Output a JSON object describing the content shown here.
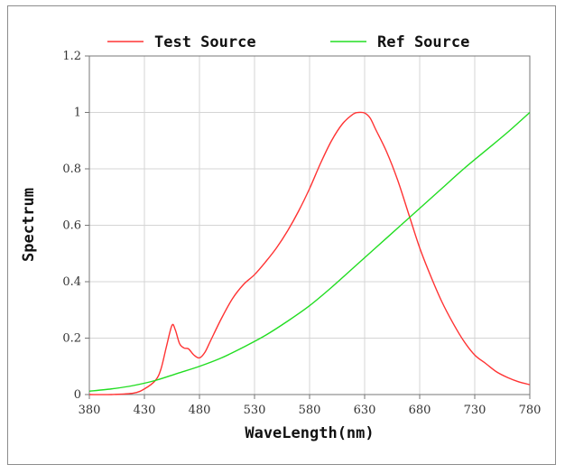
{
  "chart_data": {
    "type": "line",
    "title": "",
    "xlabel": "WaveLength(nm)",
    "ylabel": "Spectrum",
    "xlim": [
      380,
      780
    ],
    "ylim": [
      0,
      1.2
    ],
    "x_ticks": [
      "380",
      "430",
      "480",
      "530",
      "580",
      "630",
      "680",
      "730",
      "780"
    ],
    "y_ticks": [
      "0",
      "0.2",
      "0.4",
      "0.6",
      "0.8",
      "1",
      "1.2"
    ],
    "grid": true,
    "legend_position": "top",
    "series": [
      {
        "name": "Test Source",
        "color": "#ff3333",
        "x": [
          380,
          400,
          420,
          430,
          440,
          445,
          450,
          455,
          458,
          462,
          466,
          470,
          475,
          480,
          485,
          490,
          500,
          510,
          520,
          530,
          540,
          550,
          560,
          570,
          580,
          590,
          600,
          610,
          620,
          625,
          630,
          635,
          640,
          650,
          660,
          670,
          680,
          690,
          700,
          710,
          720,
          730,
          740,
          750,
          760,
          770,
          780
        ],
        "y": [
          0.0,
          0.0,
          0.005,
          0.02,
          0.05,
          0.09,
          0.17,
          0.245,
          0.23,
          0.18,
          0.165,
          0.162,
          0.14,
          0.13,
          0.15,
          0.19,
          0.27,
          0.34,
          0.39,
          0.425,
          0.47,
          0.52,
          0.58,
          0.65,
          0.73,
          0.82,
          0.9,
          0.96,
          0.995,
          1.0,
          0.998,
          0.98,
          0.94,
          0.86,
          0.76,
          0.64,
          0.52,
          0.42,
          0.33,
          0.255,
          0.19,
          0.14,
          0.11,
          0.08,
          0.06,
          0.045,
          0.035
        ]
      },
      {
        "name": "Ref Source",
        "color": "#22dd22",
        "x": [
          380,
          400,
          420,
          440,
          460,
          480,
          500,
          520,
          540,
          560,
          580,
          600,
          620,
          640,
          660,
          680,
          700,
          720,
          740,
          760,
          780
        ],
        "y": [
          0.012,
          0.02,
          0.032,
          0.05,
          0.075,
          0.1,
          0.13,
          0.168,
          0.21,
          0.26,
          0.315,
          0.38,
          0.45,
          0.52,
          0.59,
          0.66,
          0.73,
          0.8,
          0.865,
          0.93,
          1.0
        ]
      }
    ]
  }
}
